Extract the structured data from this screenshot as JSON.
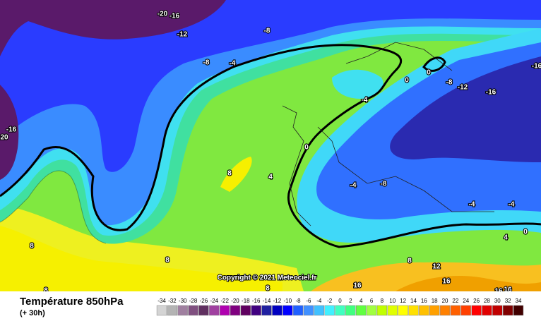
{
  "title": "Température 850hPa",
  "subtitle": "(+ 30h)",
  "copyright": "Copyright © 2021 Meteociel.fr",
  "scale": {
    "labels": [
      -34,
      -32,
      -30,
      -28,
      -26,
      -24,
      -22,
      -20,
      -18,
      -16,
      -14,
      -12,
      -10,
      -8,
      -6,
      -4,
      -2,
      0,
      2,
      4,
      6,
      8,
      10,
      12,
      14,
      16,
      18,
      20,
      22,
      24,
      26,
      28,
      30,
      32,
      34
    ],
    "colors": [
      "#d4d4d4",
      "#b4b4b4",
      "#a080a0",
      "#805080",
      "#603060",
      "#a040a0",
      "#b000b0",
      "#800080",
      "#600060",
      "#400080",
      "#2020a0",
      "#0000c0",
      "#0000ff",
      "#2060ff",
      "#4090ff",
      "#40c0ff",
      "#40f0ff",
      "#40ffc0",
      "#40ff80",
      "#60ff40",
      "#a0ff40",
      "#c0ff00",
      "#e0ff00",
      "#ffff00",
      "#ffe000",
      "#ffc000",
      "#ffa000",
      "#ff8000",
      "#ff6000",
      "#ff4000",
      "#ff0000",
      "#e00000",
      "#c00000",
      "#800000",
      "#400000"
    ]
  },
  "contour_labels": [
    "-20",
    "-16",
    "-12",
    "-8",
    "-8",
    "-4",
    "-16",
    "20",
    "0",
    "0",
    "-8",
    "-12",
    "-16",
    "-16",
    "-4",
    "0",
    "8",
    "4",
    "-4",
    "-8",
    "-4",
    "-4",
    "0",
    "4",
    "8",
    "8",
    "8",
    "12",
    "16",
    "16",
    "16",
    "16",
    "8",
    "8"
  ]
}
